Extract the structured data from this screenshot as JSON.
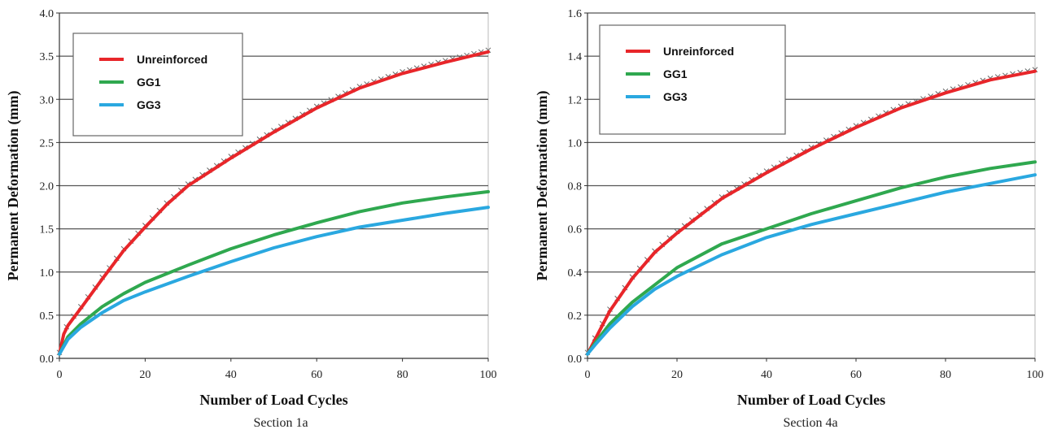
{
  "chart_data": [
    {
      "type": "line",
      "caption": "Section 1a",
      "xlabel": "Number of Load Cycles",
      "ylabel": "Permanent Deformation (mm)",
      "xlim": [
        0,
        100
      ],
      "ylim": [
        0,
        4.0
      ],
      "x_ticks": [
        "0",
        "20",
        "40",
        "60",
        "80",
        "100"
      ],
      "y_ticks": [
        "0.0",
        "0.5",
        "1.0",
        "1.5",
        "2.0",
        "2.5",
        "3.0",
        "3.5",
        "4.0"
      ],
      "grid": "horizontal",
      "legend_position": "top-left",
      "series": [
        {
          "name": "Unreinforced",
          "color": "#e8262a",
          "x": [
            0,
            1,
            2,
            5,
            10,
            15,
            20,
            25,
            30,
            40,
            50,
            60,
            70,
            80,
            90,
            100
          ],
          "y": [
            0.05,
            0.28,
            0.38,
            0.58,
            0.92,
            1.25,
            1.52,
            1.78,
            2.0,
            2.32,
            2.62,
            2.9,
            3.13,
            3.3,
            3.43,
            3.55
          ]
        },
        {
          "name": "GG1",
          "color": "#2fa84f",
          "x": [
            0,
            2,
            5,
            10,
            15,
            20,
            30,
            40,
            50,
            60,
            70,
            80,
            90,
            100
          ],
          "y": [
            0.05,
            0.25,
            0.4,
            0.6,
            0.75,
            0.88,
            1.08,
            1.27,
            1.43,
            1.57,
            1.7,
            1.8,
            1.87,
            1.93
          ]
        },
        {
          "name": "GG3",
          "color": "#2aa8e0",
          "x": [
            0,
            2,
            5,
            10,
            15,
            20,
            30,
            40,
            50,
            60,
            70,
            80,
            90,
            100
          ],
          "y": [
            0.05,
            0.22,
            0.36,
            0.53,
            0.67,
            0.77,
            0.95,
            1.12,
            1.28,
            1.41,
            1.52,
            1.6,
            1.68,
            1.75
          ]
        }
      ]
    },
    {
      "type": "line",
      "caption": "Section 4a",
      "xlabel": "Number of Load Cycles",
      "ylabel": "Permanent Deformation (mm)",
      "xlim": [
        0,
        100
      ],
      "ylim": [
        0,
        1.6
      ],
      "x_ticks": [
        "0",
        "20",
        "40",
        "60",
        "80",
        "100"
      ],
      "y_ticks": [
        "0.0",
        "0.2",
        "0.4",
        "0.6",
        "0.8",
        "1.0",
        "1.2",
        "1.4",
        "1.6"
      ],
      "grid": "horizontal",
      "legend_position": "top-left",
      "series": [
        {
          "name": "Unreinforced",
          "color": "#e8262a",
          "x": [
            0,
            2,
            5,
            10,
            15,
            20,
            30,
            40,
            50,
            60,
            70,
            80,
            90,
            100
          ],
          "y": [
            0.02,
            0.1,
            0.22,
            0.37,
            0.49,
            0.58,
            0.74,
            0.86,
            0.97,
            1.07,
            1.16,
            1.23,
            1.29,
            1.33
          ]
        },
        {
          "name": "GG1",
          "color": "#2fa84f",
          "x": [
            0,
            2,
            5,
            10,
            15,
            20,
            30,
            40,
            50,
            60,
            70,
            80,
            90,
            100
          ],
          "y": [
            0.02,
            0.08,
            0.16,
            0.26,
            0.34,
            0.42,
            0.53,
            0.6,
            0.67,
            0.73,
            0.79,
            0.84,
            0.88,
            0.91
          ]
        },
        {
          "name": "GG3",
          "color": "#2aa8e0",
          "x": [
            0,
            2,
            5,
            10,
            15,
            20,
            30,
            40,
            50,
            60,
            70,
            80,
            90,
            100
          ],
          "y": [
            0.02,
            0.07,
            0.14,
            0.24,
            0.32,
            0.38,
            0.48,
            0.56,
            0.62,
            0.67,
            0.72,
            0.77,
            0.81,
            0.85
          ]
        }
      ]
    }
  ]
}
